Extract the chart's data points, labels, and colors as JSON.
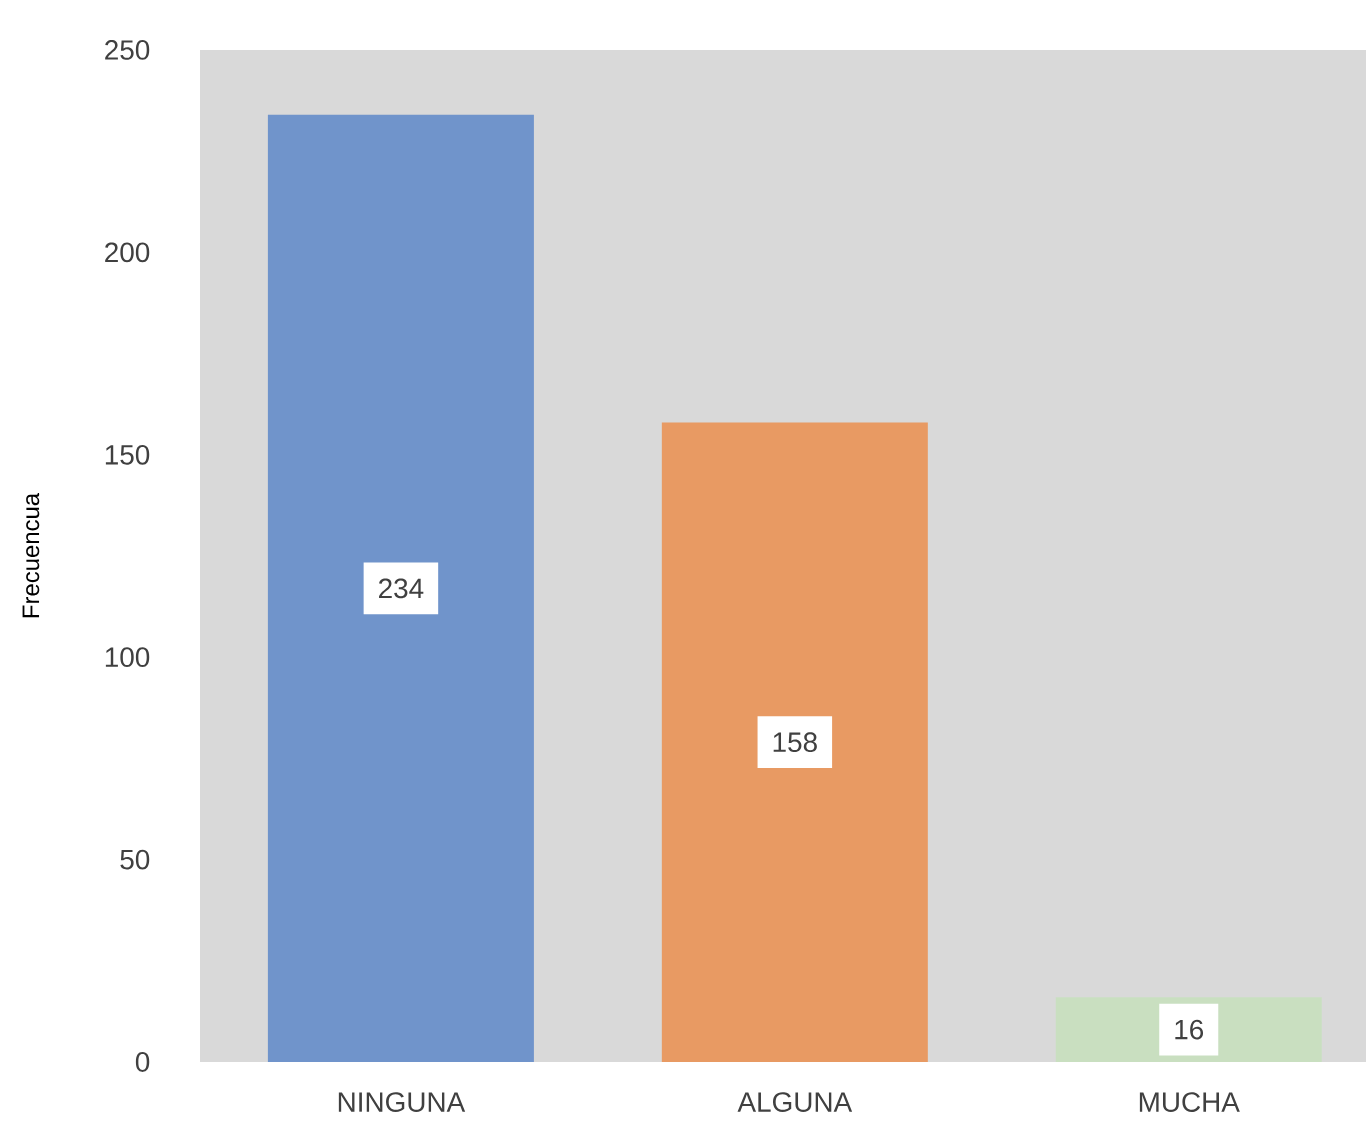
{
  "chart_data": {
    "type": "bar",
    "ylabel": "Frecuencua",
    "categories": [
      "NINGUNA",
      "ALGUNA",
      "MUCHA"
    ],
    "values": [
      234,
      158,
      16
    ],
    "colors": [
      "#7094cb",
      "#e89a63",
      "#c9dfc0"
    ],
    "ylim": [
      0,
      250
    ],
    "yticks": [
      0,
      50,
      100,
      150,
      200,
      250
    ],
    "data_labels": true,
    "grid": false
  }
}
